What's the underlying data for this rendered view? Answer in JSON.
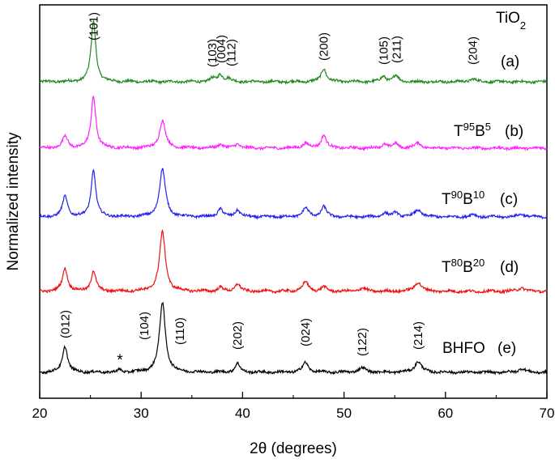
{
  "chart_data": {
    "type": "line",
    "xlabel": "2θ (degrees)",
    "ylabel": "Normalized intensity",
    "xlim": [
      20,
      70
    ],
    "x_ticks": [
      "20",
      "30",
      "40",
      "50",
      "60",
      "70"
    ],
    "y_ticks": "none",
    "grid": false,
    "series": [
      {
        "name": "TiO2 (a)",
        "label_parts": [
          {
            "text": "TiO",
            "style": "normal"
          },
          {
            "text": "2",
            "style": "sub"
          }
        ],
        "tag": "(a)",
        "color": "#1f8a1f",
        "peaks": [
          {
            "x": 25.3,
            "h": 1.0,
            "w": 0.28
          },
          {
            "x": 37.0,
            "h": 0.05,
            "w": 0.3
          },
          {
            "x": 37.8,
            "h": 0.12,
            "w": 0.3
          },
          {
            "x": 38.6,
            "h": 0.05,
            "w": 0.3
          },
          {
            "x": 48.0,
            "h": 0.22,
            "w": 0.3
          },
          {
            "x": 53.9,
            "h": 0.09,
            "w": 0.3
          },
          {
            "x": 55.1,
            "h": 0.1,
            "w": 0.3
          },
          {
            "x": 62.7,
            "h": 0.05,
            "w": 0.35
          }
        ]
      },
      {
        "name": "T95B5 (b)",
        "label_parts": [
          {
            "text": "T",
            "style": "normal"
          },
          {
            "text": "95",
            "style": "sup"
          },
          {
            "text": "B",
            "style": "normal"
          },
          {
            "text": "5",
            "style": "sup"
          }
        ],
        "tag": "(b)",
        "color": "#ff22ff",
        "peaks": [
          {
            "x": 22.5,
            "h": 0.2,
            "w": 0.3
          },
          {
            "x": 25.3,
            "h": 0.85,
            "w": 0.28
          },
          {
            "x": 32.1,
            "h": 0.45,
            "w": 0.35
          },
          {
            "x": 37.8,
            "h": 0.07,
            "w": 0.3
          },
          {
            "x": 39.5,
            "h": 0.07,
            "w": 0.3
          },
          {
            "x": 46.2,
            "h": 0.08,
            "w": 0.35
          },
          {
            "x": 48.0,
            "h": 0.22,
            "w": 0.3
          },
          {
            "x": 54.0,
            "h": 0.07,
            "w": 0.3
          },
          {
            "x": 55.1,
            "h": 0.07,
            "w": 0.3
          },
          {
            "x": 57.3,
            "h": 0.08,
            "w": 0.4
          }
        ]
      },
      {
        "name": "T90B10 (c)",
        "label_parts": [
          {
            "text": "T",
            "style": "normal"
          },
          {
            "text": "90",
            "style": "sup"
          },
          {
            "text": "B",
            "style": "normal"
          },
          {
            "text": "10",
            "style": "sup"
          }
        ],
        "tag": "(c)",
        "color": "#2222ee",
        "peaks": [
          {
            "x": 22.5,
            "h": 0.35,
            "w": 0.3
          },
          {
            "x": 25.3,
            "h": 0.8,
            "w": 0.28
          },
          {
            "x": 32.1,
            "h": 0.82,
            "w": 0.35
          },
          {
            "x": 37.8,
            "h": 0.14,
            "w": 0.3
          },
          {
            "x": 39.5,
            "h": 0.12,
            "w": 0.3
          },
          {
            "x": 46.2,
            "h": 0.15,
            "w": 0.35
          },
          {
            "x": 48.0,
            "h": 0.18,
            "w": 0.3
          },
          {
            "x": 54.0,
            "h": 0.07,
            "w": 0.3
          },
          {
            "x": 55.1,
            "h": 0.08,
            "w": 0.3
          },
          {
            "x": 57.3,
            "h": 0.12,
            "w": 0.4
          },
          {
            "x": 62.7,
            "h": 0.04,
            "w": 0.35
          },
          {
            "x": 67.5,
            "h": 0.05,
            "w": 0.4
          }
        ]
      },
      {
        "name": "T80B20 (d)",
        "label_parts": [
          {
            "text": "T",
            "style": "normal"
          },
          {
            "text": "80",
            "style": "sup"
          },
          {
            "text": "B",
            "style": "normal"
          },
          {
            "text": "20",
            "style": "sup"
          }
        ],
        "tag": "(d)",
        "color": "#ee1111",
        "peaks": [
          {
            "x": 22.5,
            "h": 0.37,
            "w": 0.3
          },
          {
            "x": 25.3,
            "h": 0.33,
            "w": 0.28
          },
          {
            "x": 32.1,
            "h": 0.95,
            "w": 0.35
          },
          {
            "x": 37.8,
            "h": 0.06,
            "w": 0.3
          },
          {
            "x": 39.5,
            "h": 0.12,
            "w": 0.3
          },
          {
            "x": 46.2,
            "h": 0.15,
            "w": 0.35
          },
          {
            "x": 48.0,
            "h": 0.07,
            "w": 0.3
          },
          {
            "x": 51.8,
            "h": 0.05,
            "w": 0.4
          },
          {
            "x": 57.3,
            "h": 0.15,
            "w": 0.4
          },
          {
            "x": 67.5,
            "h": 0.06,
            "w": 0.4
          }
        ]
      },
      {
        "name": "BHFO (e)",
        "label_parts": [
          {
            "text": "BHFO",
            "style": "normal"
          }
        ],
        "tag": "(e)",
        "color": "#000000",
        "peaks": [
          {
            "x": 22.5,
            "h": 0.43,
            "w": 0.3
          },
          {
            "x": 27.9,
            "h": 0.04,
            "w": 0.2
          },
          {
            "x": 32.1,
            "h": 1.15,
            "w": 0.35
          },
          {
            "x": 39.5,
            "h": 0.14,
            "w": 0.3
          },
          {
            "x": 46.2,
            "h": 0.16,
            "w": 0.35
          },
          {
            "x": 51.8,
            "h": 0.07,
            "w": 0.45
          },
          {
            "x": 57.3,
            "h": 0.18,
            "w": 0.4
          },
          {
            "x": 67.5,
            "h": 0.06,
            "w": 0.4
          }
        ]
      }
    ],
    "peak_labels_top": [
      {
        "x": 25.3,
        "text": "(101)"
      },
      {
        "x": 37.0,
        "text": "(103)"
      },
      {
        "x": 37.9,
        "text": "(004)"
      },
      {
        "x": 38.9,
        "text": "(112)"
      },
      {
        "x": 48.0,
        "text": "(200)"
      },
      {
        "x": 53.9,
        "text": "(105)"
      },
      {
        "x": 55.2,
        "text": "(211)"
      },
      {
        "x": 62.7,
        "text": "(204)"
      }
    ],
    "peak_labels_bottom": [
      {
        "x": 22.5,
        "text": "(012)"
      },
      {
        "x": 30.3,
        "text": "(104)"
      },
      {
        "x": 33.8,
        "text": "(110)"
      },
      {
        "x": 39.5,
        "text": "(202)"
      },
      {
        "x": 46.2,
        "text": "(024)"
      },
      {
        "x": 51.8,
        "text": "(122)"
      },
      {
        "x": 57.3,
        "text": "(214)"
      }
    ],
    "marker": {
      "x": 27.9,
      "text": "*"
    }
  }
}
